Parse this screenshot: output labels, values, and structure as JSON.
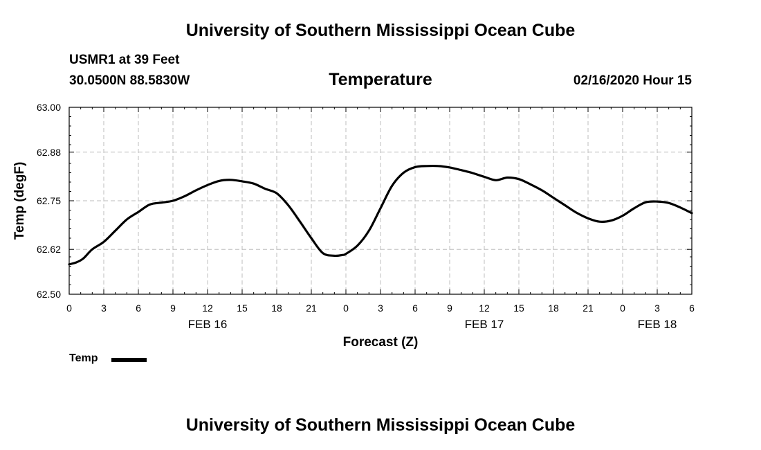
{
  "header": {
    "title": "University of Southern Mississippi Ocean Cube",
    "station": "USMR1 at 39 Feet",
    "coords": "30.0500N 88.5830W",
    "variable": "Temperature",
    "datetime": "02/16/2020 Hour 15"
  },
  "footer": {
    "title": "University of Southern Mississippi Ocean Cube"
  },
  "chart_data": {
    "type": "line",
    "title": "Temperature",
    "xlabel": "Forecast (Z)",
    "ylabel": "Temp (degF)",
    "xlim": [
      0,
      54
    ],
    "ylim": [
      62.5,
      63.0
    ],
    "y_ticks": [
      62.5,
      62.62,
      62.75,
      62.88,
      63.0
    ],
    "y_tick_labels": [
      "62.50",
      "62.62",
      "62.75",
      "62.88",
      "63.00"
    ],
    "x_ticks": [
      0,
      3,
      6,
      9,
      12,
      15,
      18,
      21,
      24,
      27,
      30,
      33,
      36,
      39,
      42,
      45,
      48,
      51,
      54
    ],
    "x_tick_labels": [
      "0",
      "3",
      "6",
      "9",
      "12",
      "15",
      "18",
      "21",
      "0",
      "3",
      "6",
      "9",
      "12",
      "15",
      "18",
      "21",
      "0",
      "3",
      "6"
    ],
    "date_labels": [
      {
        "x": 12,
        "label": "FEB 16"
      },
      {
        "x": 36,
        "label": "FEB 17"
      },
      {
        "x": 51,
        "label": "FEB 18"
      }
    ],
    "grid": true,
    "legend_position": "bottom-left",
    "series": [
      {
        "name": "Temp",
        "color": "#000000",
        "x": [
          0,
          0.6,
          1.2,
          2,
          3,
          4,
          5,
          6,
          7,
          8,
          9,
          10,
          11,
          12,
          13,
          14,
          15,
          16,
          17,
          18,
          19,
          20,
          21,
          22,
          23,
          23.7,
          24,
          25,
          26,
          27,
          28,
          29,
          30,
          31,
          32,
          33,
          34,
          35,
          36,
          37,
          38,
          39,
          40,
          41,
          42,
          43,
          44,
          45,
          46,
          47,
          48,
          49,
          50,
          51,
          52,
          53,
          54
        ],
        "values": [
          62.58,
          62.585,
          62.595,
          62.62,
          62.64,
          62.67,
          62.7,
          62.72,
          62.74,
          62.745,
          62.75,
          62.762,
          62.778,
          62.792,
          62.803,
          62.806,
          62.802,
          62.796,
          62.782,
          62.77,
          62.738,
          62.695,
          62.65,
          62.61,
          62.603,
          62.605,
          62.608,
          62.63,
          62.67,
          62.73,
          62.79,
          62.825,
          62.84,
          62.843,
          62.843,
          62.839,
          62.832,
          62.824,
          62.814,
          62.805,
          62.812,
          62.808,
          62.794,
          62.778,
          62.758,
          62.738,
          62.718,
          62.703,
          62.694,
          62.697,
          62.71,
          62.73,
          62.746,
          62.748,
          62.744,
          62.732,
          62.717
        ]
      }
    ]
  },
  "legend": {
    "label": "Temp"
  }
}
